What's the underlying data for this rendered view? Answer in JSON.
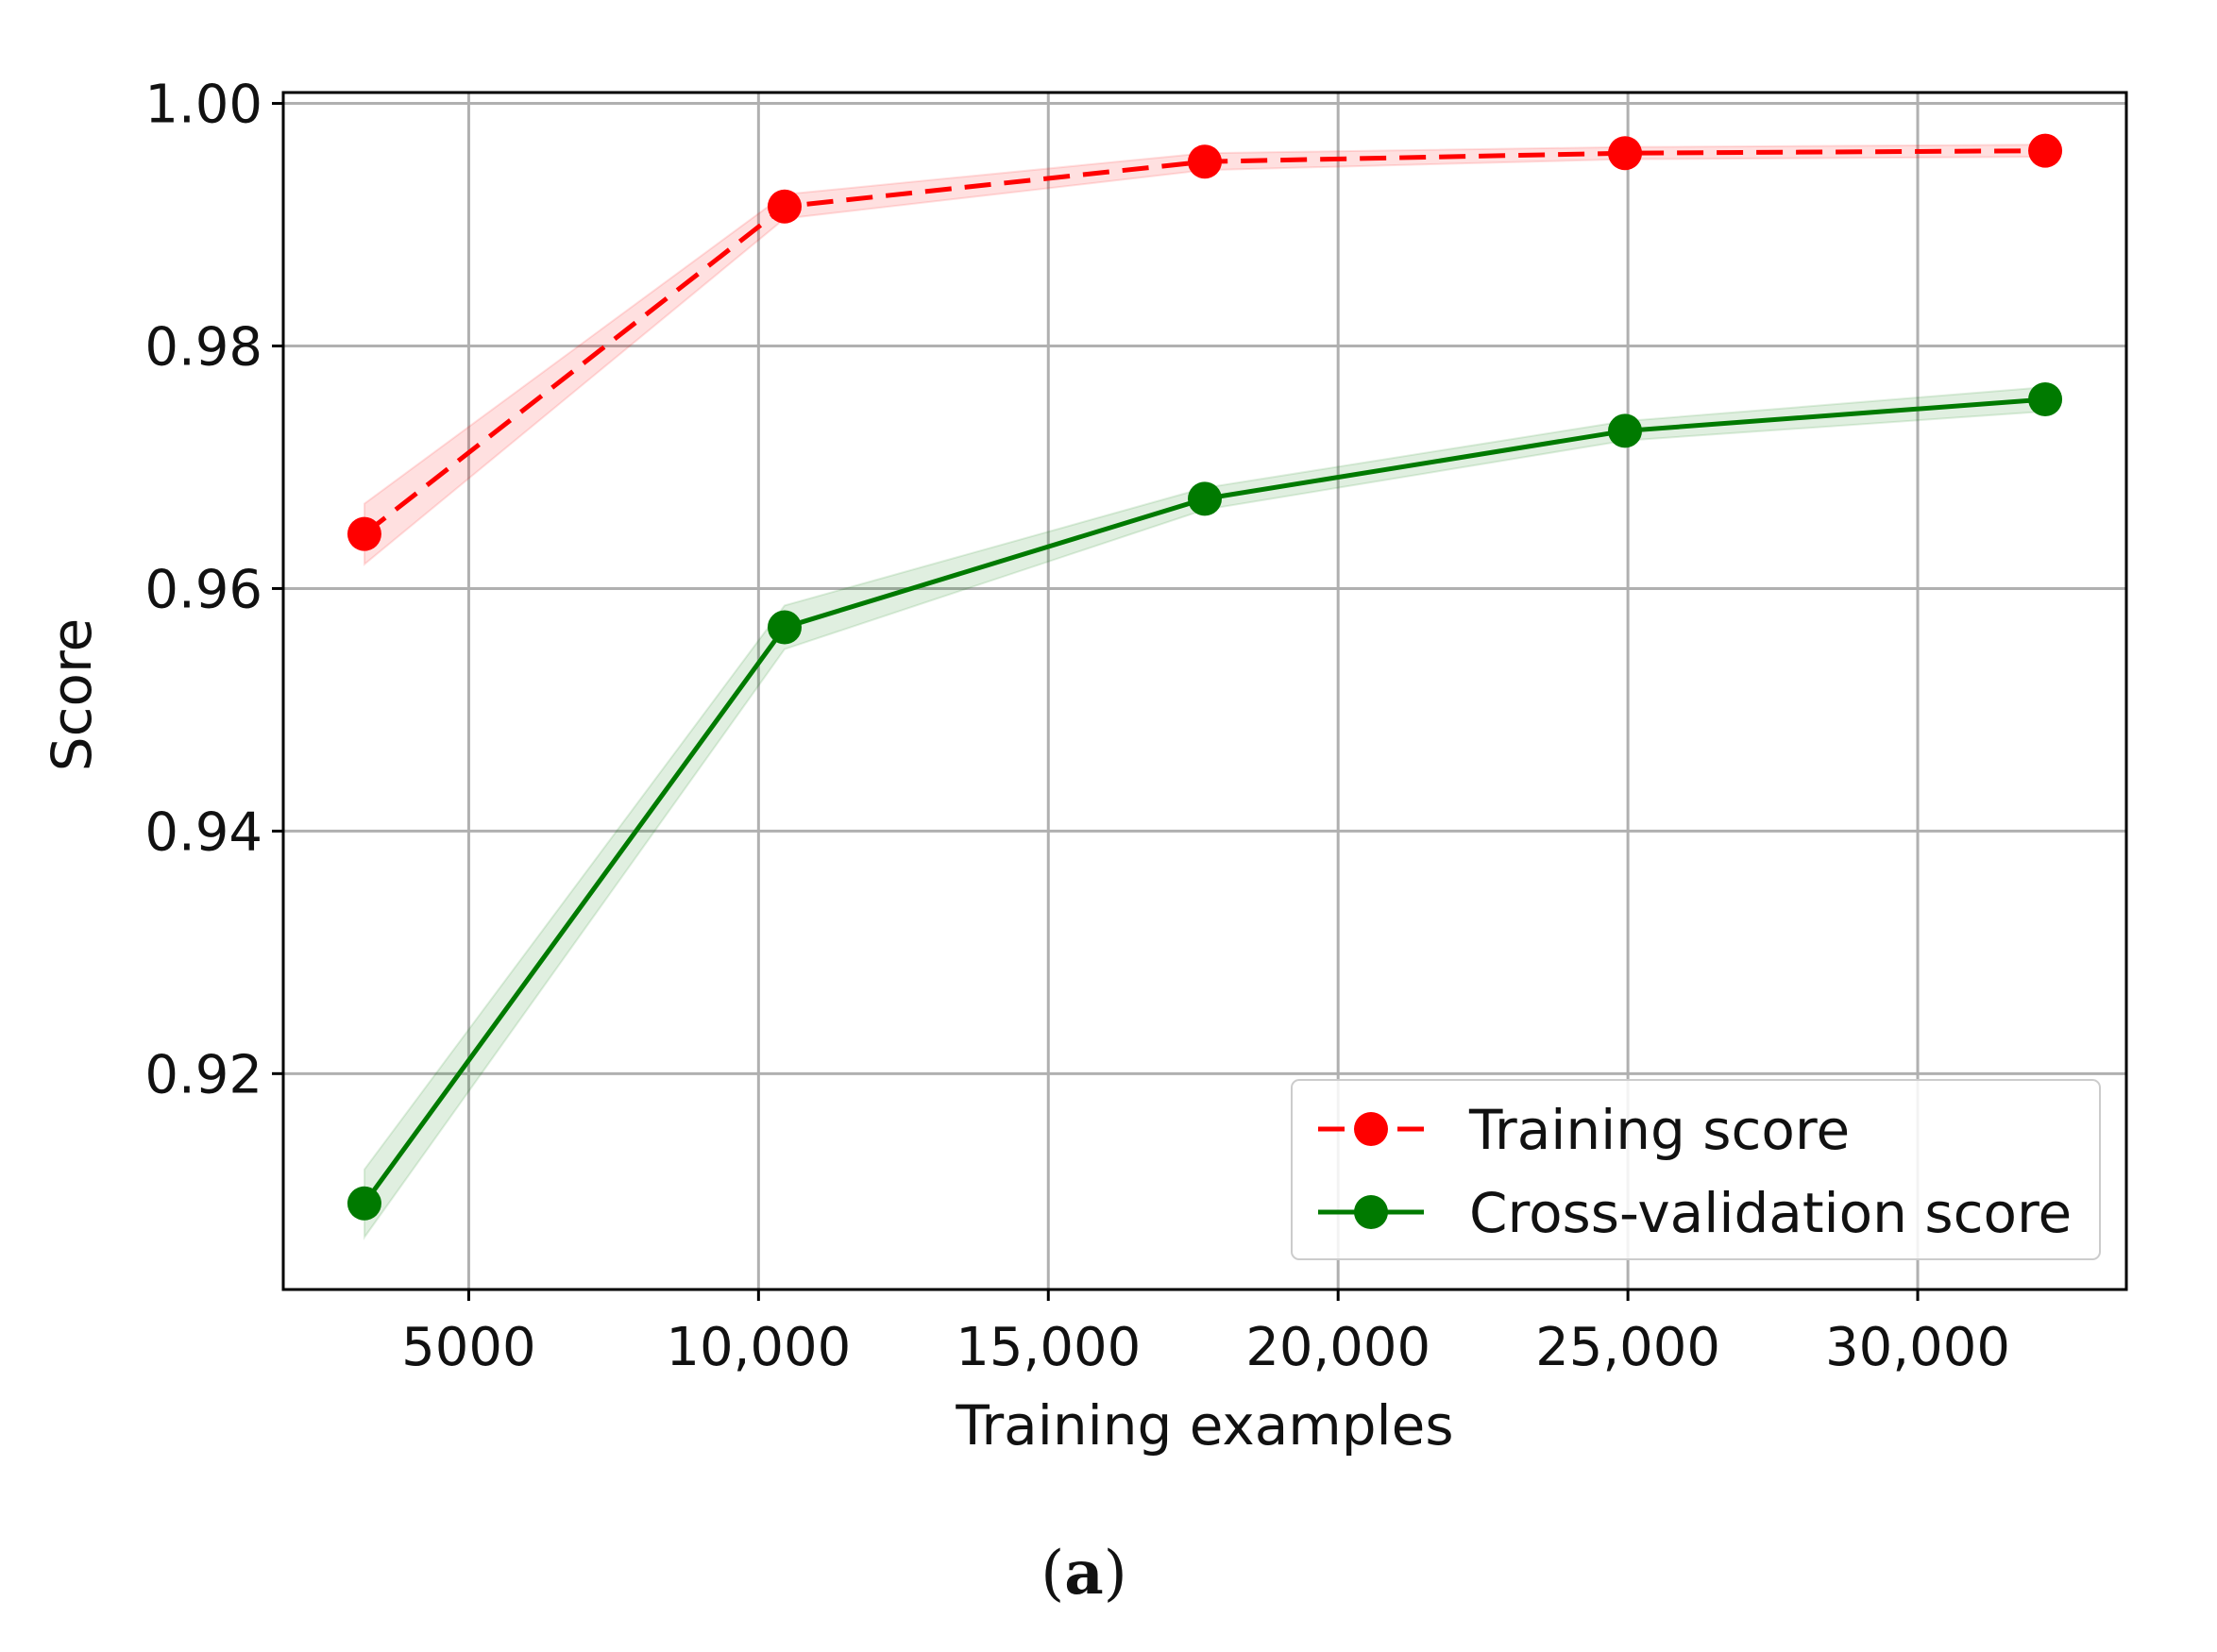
{
  "chart_data": {
    "type": "line",
    "xlabel": "Training examples",
    "ylabel": "Score",
    "xlim": [
      1800,
      33600
    ],
    "ylim": [
      0.9022,
      1.0009
    ],
    "xticks": [
      5000,
      10000,
      15000,
      20000,
      25000,
      30000
    ],
    "xtick_labels": [
      "5000",
      "10,000",
      "15,000",
      "20,000",
      "25,000",
      "30,000"
    ],
    "yticks": [
      0.92,
      0.94,
      0.96,
      0.98,
      1.0
    ],
    "ytick_labels": [
      "0.92",
      "0.94",
      "0.96",
      "0.98",
      "1.00"
    ],
    "grid": true,
    "legend_position": "lower-right",
    "series": [
      {
        "name": "Training score",
        "color": "#ff0000",
        "line_style": "dashed",
        "marker": "circle",
        "x": [
          3200,
          10450,
          17700,
          24950,
          32200
        ],
        "y": [
          0.9645,
          0.9915,
          0.9952,
          0.9959,
          0.9961
        ],
        "band_lower": [
          0.962,
          0.9905,
          0.9945,
          0.9954,
          0.9956
        ],
        "band_upper": [
          0.967,
          0.9925,
          0.9959,
          0.9964,
          0.9966
        ]
      },
      {
        "name": "Cross-validation score",
        "color": "#007a00",
        "line_style": "solid",
        "marker": "circle",
        "x": [
          3200,
          10450,
          17700,
          24950,
          32200
        ],
        "y": [
          0.9093,
          0.9568,
          0.9674,
          0.973,
          0.9756
        ],
        "band_lower": [
          0.9065,
          0.955,
          0.9665,
          0.9722,
          0.9746
        ],
        "band_upper": [
          0.9121,
          0.9586,
          0.9683,
          0.9738,
          0.9766
        ]
      }
    ]
  },
  "caption": {
    "open": "(",
    "letter": "a",
    "close": ")"
  }
}
